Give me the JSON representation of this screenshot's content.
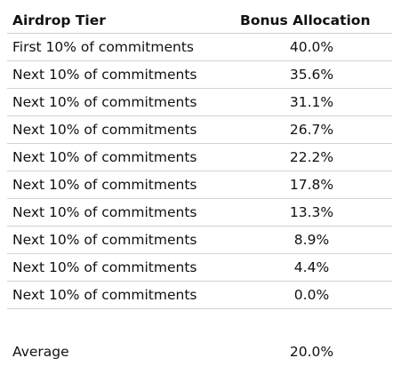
{
  "table": {
    "headers": {
      "tier": "Airdrop Tier",
      "bonus": "Bonus Allocation"
    },
    "rows": [
      {
        "tier": "First 10% of commitments",
        "bonus": "40.0%"
      },
      {
        "tier": "Next 10% of commitments",
        "bonus": "35.6%"
      },
      {
        "tier": "Next 10% of commitments",
        "bonus": "31.1%"
      },
      {
        "tier": "Next 10% of commitments",
        "bonus": "26.7%"
      },
      {
        "tier": "Next 10% of commitments",
        "bonus": "22.2%"
      },
      {
        "tier": "Next 10% of commitments",
        "bonus": "17.8%"
      },
      {
        "tier": "Next 10% of commitments",
        "bonus": "13.3%"
      },
      {
        "tier": "Next 10% of commitments",
        "bonus": "8.9%"
      },
      {
        "tier": "Next 10% of commitments",
        "bonus": "4.4%"
      },
      {
        "tier": "Next 10% of commitments",
        "bonus": "0.0%"
      }
    ],
    "average": {
      "label": "Average",
      "value": "20.0%"
    }
  }
}
